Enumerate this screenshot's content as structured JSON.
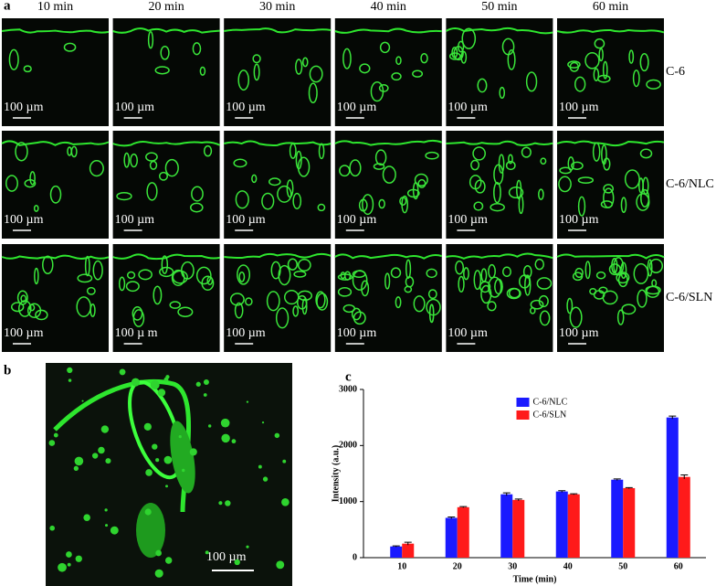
{
  "panel_labels": [
    "a",
    "b",
    "c"
  ],
  "panel_a": {
    "columns": [
      "10 min",
      "20 min",
      "30 min",
      "40 min",
      "50 min",
      "60 min"
    ],
    "rows": [
      "C-6",
      "C-6/NLC",
      "C-6/SLN"
    ],
    "scale_bars": [
      [
        "100 µm",
        "100 µm",
        "100 µm",
        "100 µm",
        "100 µm",
        "100 µm"
      ],
      [
        "100 µm",
        "100 µm",
        "100 µm",
        "100 µm",
        "100 µm",
        "100 µm"
      ],
      [
        "100 µm",
        "100 µ m",
        "100 µm",
        "100 µm",
        "100 µm",
        "100 µm"
      ]
    ]
  },
  "panel_b": {
    "scale_bar": "100 µm"
  },
  "chart_data": {
    "type": "bar",
    "xlabel": "Time (min)",
    "ylabel": "Intensity (a.u.)",
    "categories": [
      "10",
      "20",
      "30",
      "40",
      "50",
      "60"
    ],
    "series": [
      {
        "name": "C-6/NLC",
        "color": "#1a1aff",
        "values": [
          200,
          710,
          1130,
          1180,
          1390,
          2500
        ],
        "errors": [
          10,
          15,
          25,
          15,
          15,
          25
        ]
      },
      {
        "name": "C-6/SLN",
        "color": "#ff1a1a",
        "values": [
          250,
          900,
          1030,
          1130,
          1240,
          1440
        ],
        "errors": [
          25,
          10,
          15,
          10,
          10,
          35
        ]
      }
    ],
    "ylim": [
      0,
      3000
    ],
    "yticks": [
      0,
      1000,
      2000,
      3000
    ],
    "legend": "upper center"
  }
}
